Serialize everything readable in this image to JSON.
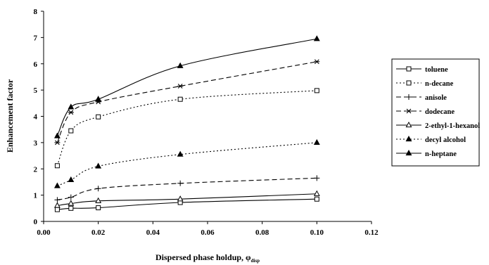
{
  "chart_data": {
    "type": "line",
    "xlabel": "Dispersed phase holdup, φ",
    "xlabel_subscript": "disp",
    "ylabel": "Enhancement factor",
    "xlim": [
      0,
      0.12
    ],
    "ylim": [
      0,
      8
    ],
    "x_ticks": [
      "0.00",
      "0.02",
      "0.04",
      "0.06",
      "0.08",
      "0.10",
      "0.12"
    ],
    "y_ticks": [
      "0",
      "1",
      "2",
      "3",
      "4",
      "5",
      "6",
      "7",
      "8"
    ],
    "grid": false,
    "legend_position": "right",
    "x": [
      0.005,
      0.01,
      0.02,
      0.05,
      0.1
    ],
    "series": [
      {
        "name": "toluene",
        "marker": "open-square",
        "dash": "solid",
        "values": [
          0.45,
          0.5,
          0.52,
          0.72,
          0.85
        ]
      },
      {
        "name": "n-decane",
        "marker": "open-square",
        "dash": "dotted",
        "values": [
          2.12,
          3.45,
          3.98,
          4.65,
          4.98
        ]
      },
      {
        "name": "anisole",
        "marker": "plus",
        "dash": "dashed",
        "values": [
          0.82,
          0.92,
          1.25,
          1.45,
          1.65
        ]
      },
      {
        "name": "dodecane",
        "marker": "star",
        "dash": "dashed",
        "values": [
          3.0,
          4.15,
          4.55,
          5.15,
          6.08
        ]
      },
      {
        "name": "2-ethyl-1-hexanol",
        "marker": "open-triangle",
        "dash": "solid",
        "values": [
          0.6,
          0.68,
          0.78,
          0.85,
          1.05
        ]
      },
      {
        "name": "decyl alcohol",
        "marker": "filled-triangle",
        "dash": "dotted",
        "values": [
          1.35,
          1.58,
          2.1,
          2.55,
          3.0
        ]
      },
      {
        "name": "n-heptane",
        "marker": "filled-triangle",
        "dash": "solid",
        "values": [
          3.25,
          4.35,
          4.65,
          5.92,
          6.95
        ]
      }
    ]
  }
}
